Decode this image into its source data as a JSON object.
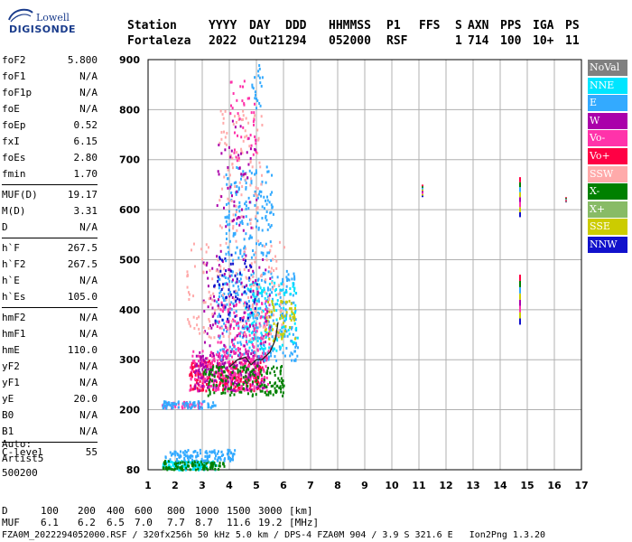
{
  "logo": {
    "line1": "Lowell",
    "line2": "DIGISONDE"
  },
  "header": {
    "row1": [
      "Station",
      "YYYY",
      "DAY",
      "DDD",
      "HHMMSS",
      "P1",
      "FFS",
      "S",
      "AXN",
      "PPS",
      "IGA",
      "PS"
    ],
    "row2": [
      "Fortaleza",
      "2022",
      "Out21",
      "294",
      "052000",
      "RSF",
      "",
      "1",
      "714",
      "100",
      "10+",
      "11"
    ]
  },
  "params": {
    "group1": [
      {
        "label": "foF2",
        "value": "5.800"
      },
      {
        "label": "foF1",
        "value": "N/A"
      },
      {
        "label": "foF1p",
        "value": "N/A"
      },
      {
        "label": "foE",
        "value": "N/A"
      },
      {
        "label": "foEp",
        "value": "0.52"
      },
      {
        "label": "fxI",
        "value": "6.15"
      },
      {
        "label": "foEs",
        "value": "2.80"
      },
      {
        "label": "fmin",
        "value": "1.70"
      }
    ],
    "group2": [
      {
        "label": "MUF(D)",
        "value": "19.17"
      },
      {
        "label": "M(D)",
        "value": "3.31"
      },
      {
        "label": "D",
        "value": "N/A"
      }
    ],
    "group3": [
      {
        "label": "h`F",
        "value": "267.5"
      },
      {
        "label": "h`F2",
        "value": "267.5"
      },
      {
        "label": "h`E",
        "value": "N/A"
      },
      {
        "label": "h`Es",
        "value": "105.0"
      }
    ],
    "group4": [
      {
        "label": "hmF2",
        "value": "N/A"
      },
      {
        "label": "hmF1",
        "value": "N/A"
      },
      {
        "label": "hmE",
        "value": "110.0"
      },
      {
        "label": "yF2",
        "value": "N/A"
      },
      {
        "label": "yF1",
        "value": "N/A"
      },
      {
        "label": "yE",
        "value": "20.0"
      },
      {
        "label": "B0",
        "value": "N/A"
      },
      {
        "label": "B1",
        "value": "N/A"
      }
    ],
    "group5": [
      {
        "label": "C-level",
        "value": "55"
      }
    ]
  },
  "auto": {
    "line1": "Auto:",
    "line2": "Artist5",
    "line3": "500200"
  },
  "legend": [
    {
      "label": "NoVal",
      "color": "#808080"
    },
    {
      "label": "NNE",
      "color": "#00e5ff"
    },
    {
      "label": "E",
      "color": "#33aaff"
    },
    {
      "label": "W",
      "color": "#aa00aa"
    },
    {
      "label": "Vo-",
      "color": "#ff33aa"
    },
    {
      "label": "Vo+",
      "color": "#ff0044"
    },
    {
      "label": "SSW",
      "color": "#ffaaaa"
    },
    {
      "label": "X-",
      "color": "#008000"
    },
    {
      "label": "X+",
      "color": "#88bb66"
    },
    {
      "label": "SSE",
      "color": "#cccc00"
    },
    {
      "label": "NNW",
      "color": "#1111cc"
    }
  ],
  "footer": {
    "d_label": "D",
    "d_values": [
      "100",
      "200",
      "400",
      "600",
      "800",
      "1000",
      "1500",
      "3000",
      "[km]"
    ],
    "muf_label": "MUF",
    "muf_values": [
      "6.1",
      "6.2",
      "6.5",
      "7.0",
      "7.7",
      "8.7",
      "11.6",
      "19.2",
      "[MHz]"
    ],
    "line3": "FZA0M_2022294052000.RSF / 320fx256h 50 kHz 5.0 km / DPS-4 FZA0M 904 / 3.9 S 321.6 E   Ion2Png 1.3.20"
  },
  "chart_data": {
    "type": "scatter",
    "xlim": [
      1,
      17
    ],
    "ylim": [
      80,
      900
    ],
    "x_ticks": [
      1,
      2,
      3,
      4,
      5,
      6,
      7,
      8,
      9,
      10,
      11,
      12,
      13,
      14,
      15,
      16,
      17
    ],
    "y_ticks": [
      80,
      200,
      300,
      400,
      500,
      600,
      700,
      800,
      900
    ],
    "grid": true,
    "traces": [
      {
        "name": "trace",
        "x": [
          4.0,
          4.3,
          4.6,
          4.8,
          5.0,
          5.2,
          5.5,
          5.7,
          5.8
        ],
        "y": [
          285,
          300,
          305,
          290,
          300,
          300,
          315,
          340,
          375
        ]
      }
    ],
    "echo_regions": [
      {
        "direction": "NNE",
        "x": [
          1.5,
          3.5
        ],
        "y": [
          82,
          100
        ],
        "density": 120
      },
      {
        "direction": "X-",
        "x": [
          1.5,
          3.8
        ],
        "y": [
          82,
          100
        ],
        "density": 90
      },
      {
        "direction": "E",
        "x": [
          1.6,
          4.2
        ],
        "y": [
          100,
          122
        ],
        "density": 120
      },
      {
        "direction": "Vo-",
        "x": [
          1.5,
          3.0
        ],
        "y": [
          205,
          218
        ],
        "density": 40
      },
      {
        "direction": "E",
        "x": [
          1.5,
          3.5
        ],
        "y": [
          205,
          220
        ],
        "density": 70
      },
      {
        "direction": "Vo+",
        "x": [
          2.5,
          5.2
        ],
        "y": [
          240,
          300
        ],
        "density": 240
      },
      {
        "direction": "Vo-",
        "x": [
          2.5,
          5.4
        ],
        "y": [
          240,
          320
        ],
        "density": 240
      },
      {
        "direction": "W",
        "x": [
          2.7,
          5.3
        ],
        "y": [
          240,
          320
        ],
        "density": 160
      },
      {
        "direction": "X-",
        "x": [
          3.0,
          6.0
        ],
        "y": [
          230,
          290
        ],
        "density": 160
      },
      {
        "direction": "E",
        "x": [
          3.5,
          6.5
        ],
        "y": [
          300,
          480
        ],
        "density": 320
      },
      {
        "direction": "NNE",
        "x": [
          4.5,
          6.5
        ],
        "y": [
          320,
          460
        ],
        "density": 140
      },
      {
        "direction": "SSE",
        "x": [
          5.3,
          6.4
        ],
        "y": [
          340,
          420
        ],
        "density": 60
      },
      {
        "direction": "Vo-",
        "x": [
          3.5,
          5.5
        ],
        "y": [
          300,
          420
        ],
        "density": 120
      },
      {
        "direction": "W",
        "x": [
          3.0,
          5.5
        ],
        "y": [
          330,
          520
        ],
        "density": 90
      },
      {
        "direction": "SSW",
        "x": [
          2.4,
          6.0
        ],
        "y": [
          340,
          540
        ],
        "density": 160
      },
      {
        "direction": "NNW",
        "x": [
          3.4,
          5.0
        ],
        "y": [
          380,
          520
        ],
        "density": 60
      },
      {
        "direction": "E",
        "x": [
          3.8,
          5.6
        ],
        "y": [
          500,
          690
        ],
        "density": 160
      },
      {
        "direction": "SSW",
        "x": [
          3.6,
          5.2
        ],
        "y": [
          560,
          800
        ],
        "density": 100
      },
      {
        "direction": "W",
        "x": [
          3.5,
          5.0
        ],
        "y": [
          560,
          780
        ],
        "density": 50
      },
      {
        "direction": "Vo-",
        "x": [
          4.0,
          5.0
        ],
        "y": [
          700,
          860
        ],
        "density": 40
      },
      {
        "direction": "E",
        "x": [
          4.8,
          5.2
        ],
        "y": [
          800,
          900
        ],
        "density": 20
      }
    ],
    "interference_lines": [
      {
        "x": 14.7,
        "y": [
          370,
          470
        ]
      },
      {
        "x": 14.7,
        "y": [
          585,
          665
        ]
      },
      {
        "x": 11.1,
        "y": [
          625,
          650
        ]
      },
      {
        "x": 16.4,
        "y": [
          615,
          625
        ]
      }
    ]
  }
}
